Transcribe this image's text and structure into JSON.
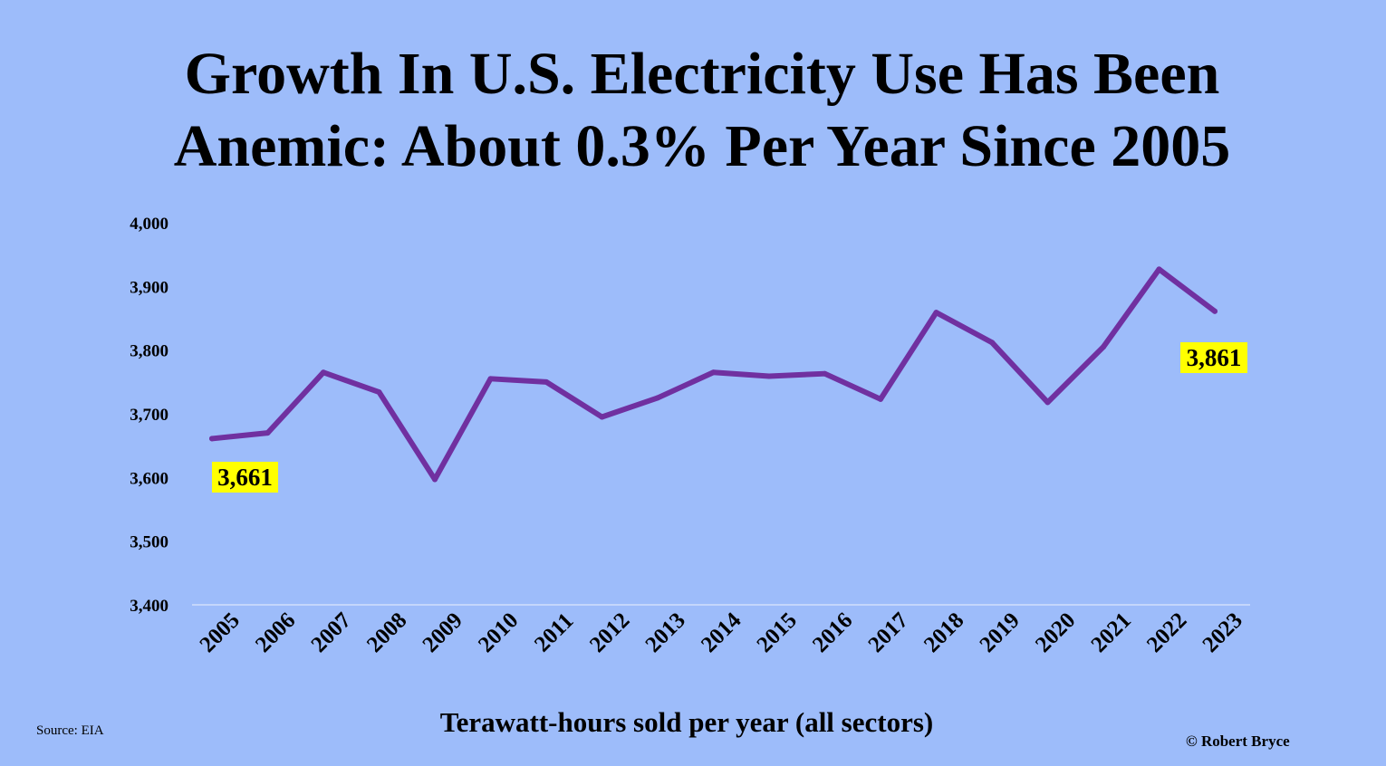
{
  "title": {
    "line1": "Growth In U.S. Electricity Use Has Been",
    "line2": "Anemic: About 0.3% Per Year Since 2005"
  },
  "source": "Source: EIA",
  "copyright": "© Robert Bryce",
  "colors": {
    "background": "#9dbcfa",
    "line": "#7030a0",
    "label_highlight": "#ffff00",
    "baseline": "#dce6fc"
  },
  "chart_data": {
    "type": "line",
    "title": "Growth In U.S. Electricity Use Has Been Anemic: About 0.3% Per Year Since 2005",
    "xlabel": "Terawatt-hours sold per year (all sectors)",
    "ylabel": "",
    "ylim": [
      3400,
      4000
    ],
    "yticks": [
      3400,
      3500,
      3600,
      3700,
      3800,
      3900,
      4000
    ],
    "ytick_labels": [
      "3,400",
      "3,500",
      "3,600",
      "3,700",
      "3,800",
      "3,900",
      "4,000"
    ],
    "categories": [
      "2005",
      "2006",
      "2007",
      "2008",
      "2009",
      "2010",
      "2011",
      "2012",
      "2013",
      "2014",
      "2015",
      "2016",
      "2017",
      "2018",
      "2019",
      "2020",
      "2021",
      "2022",
      "2023"
    ],
    "series": [
      {
        "values": [
          3661,
          3670,
          3765,
          3734,
          3597,
          3755,
          3750,
          3695,
          3725,
          3765,
          3759,
          3763,
          3723,
          3859,
          3812,
          3718,
          3805,
          3927,
          3861
        ]
      }
    ],
    "grid": false,
    "annotations": [
      {
        "category": "2005",
        "text": "3,661"
      },
      {
        "category": "2023",
        "text": "3,861"
      }
    ]
  }
}
